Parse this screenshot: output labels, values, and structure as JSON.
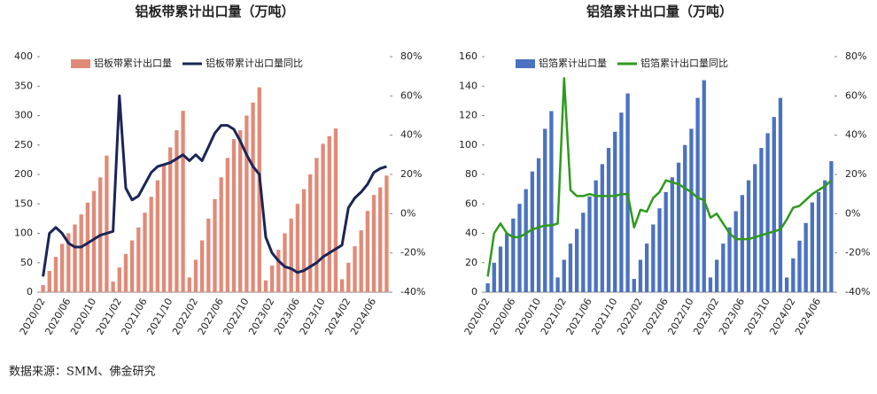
{
  "chart_data": [
    {
      "type": "combo",
      "title": "铝板带累计出口量（万吨）",
      "legend": "top",
      "categories": [
        "2020/02",
        null,
        null,
        null,
        "2020/06",
        null,
        null,
        null,
        "2020/10",
        null,
        null,
        null,
        "2021/02",
        null,
        null,
        null,
        "2021/06",
        null,
        null,
        null,
        "2021/10",
        null,
        null,
        null,
        "2022/02",
        null,
        null,
        null,
        "2022/06",
        null,
        null,
        null,
        "2022/10",
        null,
        null,
        null,
        "2023/02",
        null,
        null,
        null,
        "2023/06",
        null,
        null,
        null,
        "2023/10",
        null,
        null,
        null,
        "2024/02",
        null,
        null,
        null,
        "2024/06",
        null,
        null
      ],
      "ylim": [
        0,
        400
      ],
      "yticks": [
        0,
        50,
        100,
        150,
        200,
        250,
        300,
        350,
        400
      ],
      "y2lim": [
        -40,
        80
      ],
      "y2ticks": [
        {
          "value": -40,
          "label": "-40%"
        },
        {
          "value": -20,
          "label": "-20%"
        },
        {
          "value": 0,
          "label": "0%"
        },
        {
          "value": 20,
          "label": "20%"
        },
        {
          "value": 40,
          "label": "40%"
        },
        {
          "value": 60,
          "label": "60%"
        },
        {
          "value": 80,
          "label": "80%"
        }
      ],
      "series": [
        {
          "name": "铝板带累计出口量",
          "color": "#e08a78",
          "kind": "bar",
          "values": [
            12,
            36,
            60,
            82,
            100,
            115,
            132,
            152,
            172,
            195,
            232,
            18,
            42,
            65,
            88,
            110,
            135,
            162,
            190,
            218,
            246,
            275,
            308,
            25,
            55,
            88,
            125,
            158,
            195,
            228,
            260,
            275,
            300,
            322,
            348,
            20,
            45,
            72,
            100,
            125,
            150,
            175,
            200,
            228,
            252,
            265,
            278,
            22,
            50,
            78,
            105,
            138,
            165,
            178,
            198
          ]
        },
        {
          "name": "铝板带累计出口量同比",
          "color": "#1b2556",
          "kind": "line",
          "axis": "y2",
          "values": [
            -32,
            -10,
            -7,
            -10,
            -15,
            -17,
            -17,
            -15,
            -13,
            -11,
            -10,
            -9,
            60,
            13,
            7,
            9,
            15,
            21,
            24,
            25,
            26,
            28,
            30,
            27,
            30,
            27,
            34,
            41,
            45,
            45,
            43,
            37,
            30,
            24,
            20,
            -12,
            -20,
            -24,
            -27,
            -28,
            -30,
            -29,
            -27,
            -25,
            -22,
            -20,
            -18,
            -16,
            3,
            8,
            11,
            15,
            21,
            23,
            24
          ]
        }
      ]
    },
    {
      "type": "combo",
      "title": "铝箔累计出口量（万吨）",
      "legend": "top",
      "categories": [
        "2020/02",
        null,
        null,
        null,
        "2020/06",
        null,
        null,
        null,
        "2020/10",
        null,
        null,
        null,
        "2021/02",
        null,
        null,
        null,
        "2021/06",
        null,
        null,
        null,
        "2021/10",
        null,
        null,
        null,
        "2022/02",
        null,
        null,
        null,
        "2022/06",
        null,
        null,
        null,
        "2022/10",
        null,
        null,
        null,
        "2023/02",
        null,
        null,
        null,
        "2023/06",
        null,
        null,
        null,
        "2023/10",
        null,
        null,
        null,
        "2024/02",
        null,
        null,
        null,
        "2024/06",
        null,
        null
      ],
      "ylim": [
        0,
        160
      ],
      "yticks": [
        0,
        20,
        40,
        60,
        80,
        100,
        120,
        140,
        160
      ],
      "y2lim": [
        -40,
        80
      ],
      "y2ticks": [
        {
          "value": -40,
          "label": "-40%"
        },
        {
          "value": -20,
          "label": "-20%"
        },
        {
          "value": 0,
          "label": "0%"
        },
        {
          "value": 20,
          "label": "20%"
        },
        {
          "value": 40,
          "label": "40%"
        },
        {
          "value": 60,
          "label": "60%"
        },
        {
          "value": 80,
          "label": "80%"
        }
      ],
      "series": [
        {
          "name": "铝箔累计出口量",
          "color": "#4a72c0",
          "kind": "bar",
          "values": [
            6,
            20,
            31,
            40,
            50,
            60,
            70,
            82,
            91,
            111,
            123,
            10,
            22,
            33,
            43,
            54,
            65,
            76,
            87,
            98,
            109,
            122,
            135,
            9,
            22,
            33,
            46,
            57,
            68,
            78,
            88,
            100,
            111,
            132,
            144,
            10,
            22,
            33,
            44,
            55,
            66,
            76,
            87,
            98,
            108,
            119,
            132,
            10,
            23,
            35,
            47,
            61,
            68,
            76,
            89
          ]
        },
        {
          "name": "铝箔累计出口量同比",
          "color": "#2e9a1d",
          "kind": "line",
          "axis": "y2",
          "values": [
            -32,
            -10,
            -5,
            -10,
            -12,
            -12,
            -10,
            -8,
            -7,
            -6,
            -6,
            -5,
            69,
            12,
            9,
            9,
            10,
            9,
            9,
            9,
            9,
            10,
            10,
            -7,
            2,
            1,
            8,
            11,
            17,
            16,
            15,
            13,
            11,
            8,
            7,
            -2,
            0,
            -5,
            -10,
            -13,
            -13,
            -13,
            -12,
            -11,
            -10,
            -9,
            -8,
            -3,
            3,
            4,
            7,
            10,
            12,
            14,
            17
          ]
        }
      ]
    }
  ],
  "source": "数据来源：SMM、佛金研究"
}
